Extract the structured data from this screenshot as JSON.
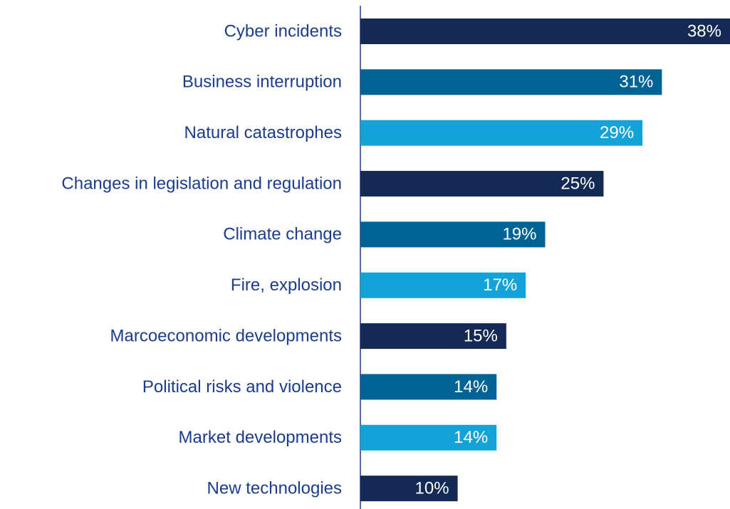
{
  "chart_data": {
    "type": "barh",
    "categories": [
      "Cyber incidents",
      "Business interruption",
      "Natural catastrophes",
      "Changes in legislation and regulation",
      "Climate change",
      "Fire, explosion",
      "Marcoeconomic developments",
      "Political risks and violence",
      "Market developments",
      "New technologies"
    ],
    "values": [
      38,
      31,
      29,
      25,
      19,
      17,
      15,
      14,
      14,
      10
    ],
    "value_labels": [
      "38%",
      "31%",
      "29%",
      "25%",
      "19%",
      "17%",
      "15%",
      "14%",
      "14%",
      "10%"
    ],
    "colors": [
      "#142a55",
      "#006393",
      "#14a3d8",
      "#142a55",
      "#006393",
      "#14a3d8",
      "#142a55",
      "#006393",
      "#14a3d8",
      "#142a55"
    ],
    "xlim": [
      0,
      38
    ]
  }
}
